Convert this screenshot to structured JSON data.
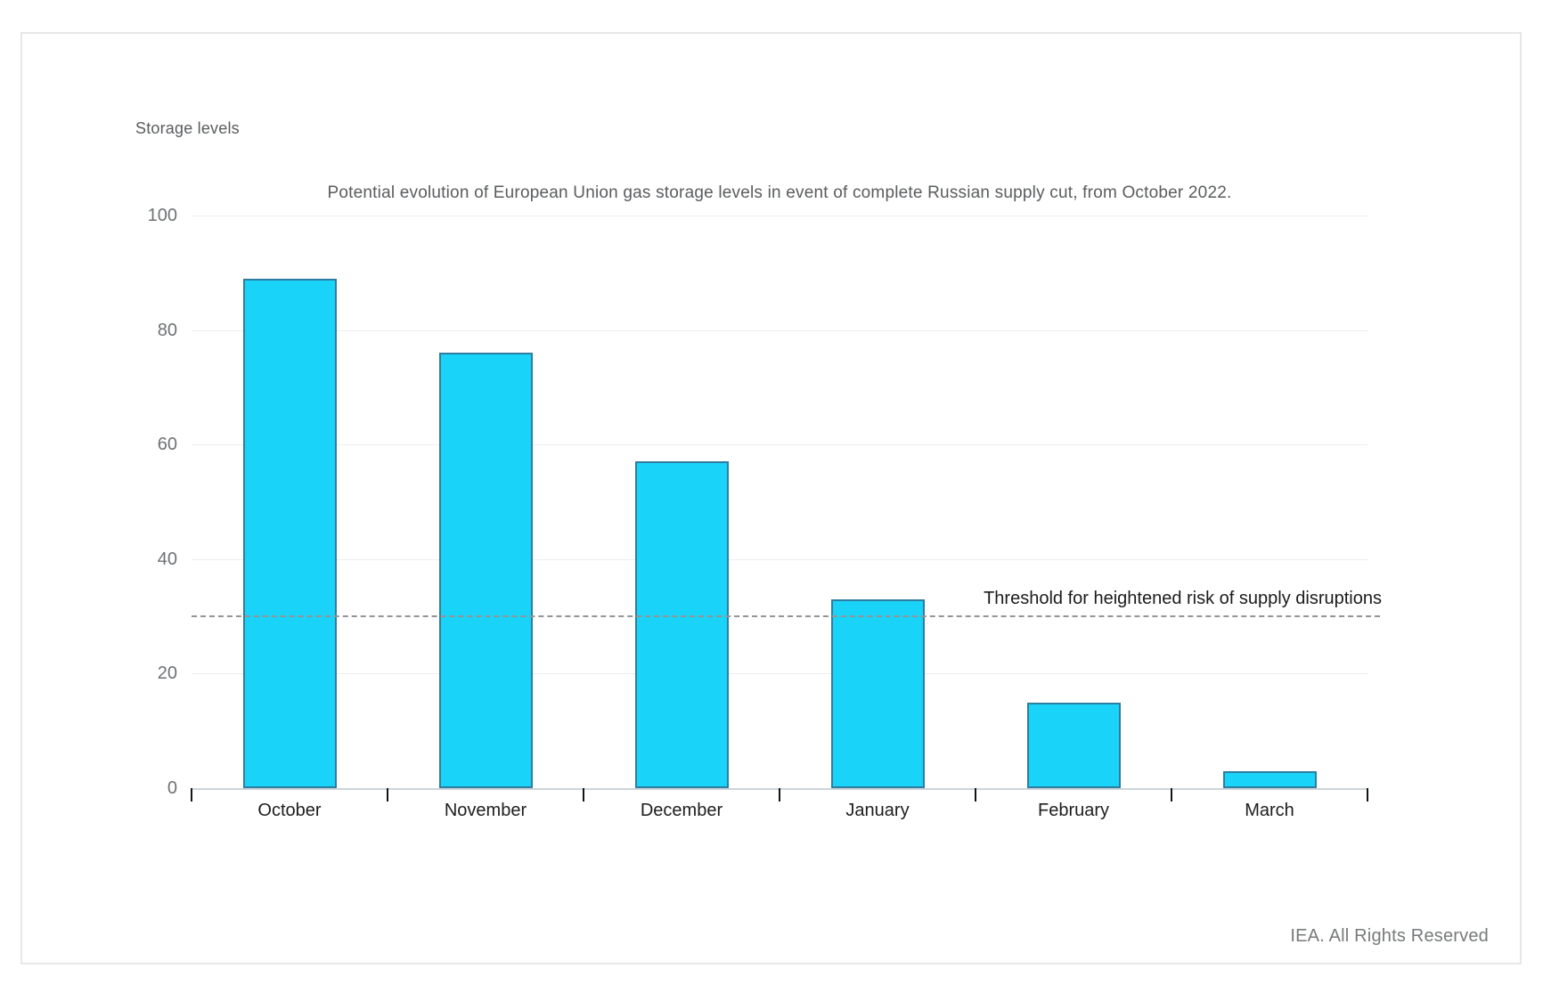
{
  "footer": {
    "text": "IEA. All Rights Reserved"
  },
  "chart_data": {
    "type": "bar",
    "title": "Potential evolution of European Union gas storage levels in event of complete Russian supply cut, from October 2022.",
    "ylabel": "Storage levels",
    "xlabel": "",
    "categories": [
      "October",
      "November",
      "December",
      "January",
      "February",
      "March"
    ],
    "values": [
      89,
      76,
      57,
      33,
      15,
      3
    ],
    "ylim": [
      0,
      100
    ],
    "yticks": [
      0,
      20,
      40,
      60,
      80,
      100
    ],
    "grid": true,
    "legend": false,
    "threshold": {
      "value": 30,
      "label": "Threshold for heightened risk of supply disruptions"
    },
    "colors": {
      "bar_fill": "#19D3F8",
      "bar_border": "#2E7DA0",
      "gridline": "#ECECEC",
      "axis_line": "#CDD5DA",
      "threshold_dash": "#949494"
    }
  }
}
